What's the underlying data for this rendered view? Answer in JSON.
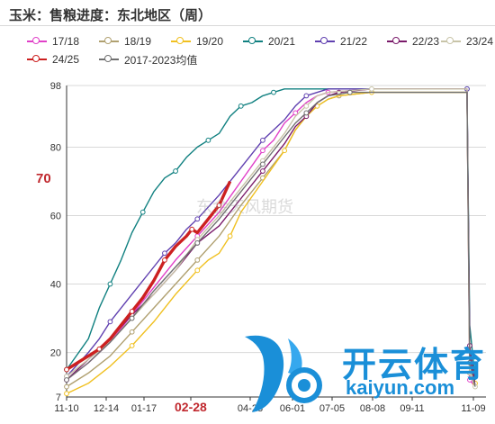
{
  "title": "玉米：售粮进度：东北地区（周）",
  "side_label": "70",
  "watermark": "东金天风期货",
  "highlight_tick": "02-28",
  "logo": {
    "cn": "开云体育",
    "en": "kaiyun.com"
  },
  "chart_data": {
    "type": "line",
    "x_ticks": [
      "11-10",
      "12-14",
      "01-17",
      "02-28",
      "04-28",
      "06-01",
      "07-05",
      "08-08",
      "09-11",
      "11-09"
    ],
    "y_ticks": [
      7,
      20,
      40,
      60,
      80,
      98
    ],
    "ylim": [
      7,
      98
    ],
    "grid": true,
    "legend_position": "top",
    "series": [
      {
        "name": "17/18",
        "color": "#e040c8",
        "points": [
          [
            0,
            12
          ],
          [
            8,
            17
          ],
          [
            16,
            23
          ],
          [
            24,
            31
          ],
          [
            32,
            39
          ],
          [
            40,
            47
          ],
          [
            48,
            54
          ],
          [
            56,
            61
          ],
          [
            64,
            70
          ],
          [
            72,
            79
          ],
          [
            76,
            82
          ],
          [
            80,
            87
          ],
          [
            84,
            90
          ],
          [
            88,
            93
          ],
          [
            92,
            95
          ],
          [
            96,
            96
          ],
          [
            112,
            97
          ],
          [
            147,
            97
          ],
          [
            148,
            12
          ],
          [
            150,
            10
          ]
        ]
      },
      {
        "name": "18/19",
        "color": "#b0a070",
        "points": [
          [
            0,
            10
          ],
          [
            8,
            14
          ],
          [
            16,
            19
          ],
          [
            24,
            26
          ],
          [
            32,
            33
          ],
          [
            40,
            40
          ],
          [
            48,
            47
          ],
          [
            56,
            54
          ],
          [
            64,
            63
          ],
          [
            72,
            71
          ],
          [
            80,
            79
          ],
          [
            84,
            85
          ],
          [
            88,
            89
          ],
          [
            92,
            92
          ],
          [
            96,
            94
          ],
          [
            100,
            95
          ],
          [
            112,
            96
          ],
          [
            147,
            96
          ],
          [
            148,
            14
          ],
          [
            150,
            10
          ]
        ]
      },
      {
        "name": "19/20",
        "color": "#f0c020",
        "points": [
          [
            0,
            8
          ],
          [
            8,
            11
          ],
          [
            16,
            16
          ],
          [
            24,
            22
          ],
          [
            32,
            29
          ],
          [
            40,
            37
          ],
          [
            48,
            44
          ],
          [
            52,
            47
          ],
          [
            56,
            49
          ],
          [
            60,
            54
          ],
          [
            64,
            61
          ],
          [
            72,
            70
          ],
          [
            80,
            79
          ],
          [
            84,
            85
          ],
          [
            88,
            89
          ],
          [
            92,
            92
          ],
          [
            96,
            94
          ],
          [
            100,
            95
          ],
          [
            112,
            96
          ],
          [
            147,
            96
          ],
          [
            148,
            18
          ],
          [
            150,
            11
          ]
        ]
      },
      {
        "name": "20/21",
        "color": "#108080",
        "points": [
          [
            0,
            15
          ],
          [
            8,
            24
          ],
          [
            12,
            33
          ],
          [
            16,
            40
          ],
          [
            20,
            47
          ],
          [
            24,
            55
          ],
          [
            28,
            61
          ],
          [
            32,
            67
          ],
          [
            36,
            71
          ],
          [
            40,
            73
          ],
          [
            44,
            77
          ],
          [
            48,
            80
          ],
          [
            52,
            82
          ],
          [
            56,
            84
          ],
          [
            60,
            89
          ],
          [
            64,
            92
          ],
          [
            68,
            93
          ],
          [
            72,
            95
          ],
          [
            76,
            96
          ],
          [
            80,
            97
          ],
          [
            88,
            97
          ],
          [
            147,
            97
          ],
          [
            148,
            28
          ],
          [
            150,
            12
          ]
        ]
      },
      {
        "name": "21/22",
        "color": "#6040b0",
        "points": [
          [
            0,
            13
          ],
          [
            8,
            20
          ],
          [
            12,
            24
          ],
          [
            16,
            29
          ],
          [
            24,
            37
          ],
          [
            32,
            45
          ],
          [
            36,
            49
          ],
          [
            40,
            52
          ],
          [
            44,
            56
          ],
          [
            48,
            59
          ],
          [
            56,
            66
          ],
          [
            64,
            74
          ],
          [
            72,
            82
          ],
          [
            80,
            88
          ],
          [
            84,
            92
          ],
          [
            88,
            95
          ],
          [
            92,
            96
          ],
          [
            96,
            97
          ],
          [
            147,
            97
          ],
          [
            148,
            20
          ],
          [
            150,
            10
          ]
        ]
      },
      {
        "name": "22/23",
        "color": "#7a1a6a",
        "points": [
          [
            0,
            12
          ],
          [
            8,
            18
          ],
          [
            16,
            24
          ],
          [
            24,
            31
          ],
          [
            32,
            37
          ],
          [
            40,
            44
          ],
          [
            48,
            52
          ],
          [
            56,
            57
          ],
          [
            64,
            65
          ],
          [
            72,
            73
          ],
          [
            80,
            81
          ],
          [
            84,
            86
          ],
          [
            88,
            89
          ],
          [
            92,
            93
          ],
          [
            96,
            95
          ],
          [
            100,
            96
          ],
          [
            112,
            97
          ],
          [
            147,
            97
          ],
          [
            148,
            22
          ],
          [
            150,
            10
          ]
        ]
      },
      {
        "name": "23/24",
        "color": "#c8c4a8",
        "points": [
          [
            0,
            13
          ],
          [
            8,
            18
          ],
          [
            16,
            23
          ],
          [
            24,
            30
          ],
          [
            32,
            37
          ],
          [
            40,
            44
          ],
          [
            48,
            53
          ],
          [
            56,
            60
          ],
          [
            64,
            68
          ],
          [
            72,
            76
          ],
          [
            80,
            84
          ],
          [
            84,
            89
          ],
          [
            88,
            92
          ],
          [
            92,
            95
          ],
          [
            96,
            96
          ],
          [
            112,
            97
          ],
          [
            147,
            97
          ],
          [
            148,
            14
          ],
          [
            150,
            10
          ]
        ]
      },
      {
        "name": "24/25",
        "color": "#cc2020",
        "thick": true,
        "points": [
          [
            0,
            15
          ],
          [
            4,
            17
          ],
          [
            8,
            19
          ],
          [
            12,
            21
          ],
          [
            16,
            24
          ],
          [
            20,
            28
          ],
          [
            24,
            32
          ],
          [
            28,
            36
          ],
          [
            32,
            41
          ],
          [
            36,
            47
          ],
          [
            40,
            51
          ],
          [
            44,
            54
          ],
          [
            46,
            56
          ],
          [
            48,
            55
          ],
          [
            52,
            59
          ],
          [
            56,
            63
          ],
          [
            60,
            70
          ]
        ]
      },
      {
        "name": "2017-2023均值",
        "color": "#707070",
        "points": [
          [
            0,
            12
          ],
          [
            8,
            17
          ],
          [
            16,
            23
          ],
          [
            24,
            30
          ],
          [
            32,
            38
          ],
          [
            40,
            45
          ],
          [
            48,
            52
          ],
          [
            56,
            59
          ],
          [
            64,
            67
          ],
          [
            72,
            75
          ],
          [
            80,
            83
          ],
          [
            84,
            87
          ],
          [
            88,
            90
          ],
          [
            92,
            93
          ],
          [
            96,
            95
          ],
          [
            104,
            96
          ],
          [
            112,
            96
          ],
          [
            147,
            96
          ],
          [
            148,
            17
          ],
          [
            150,
            10
          ]
        ]
      }
    ]
  }
}
